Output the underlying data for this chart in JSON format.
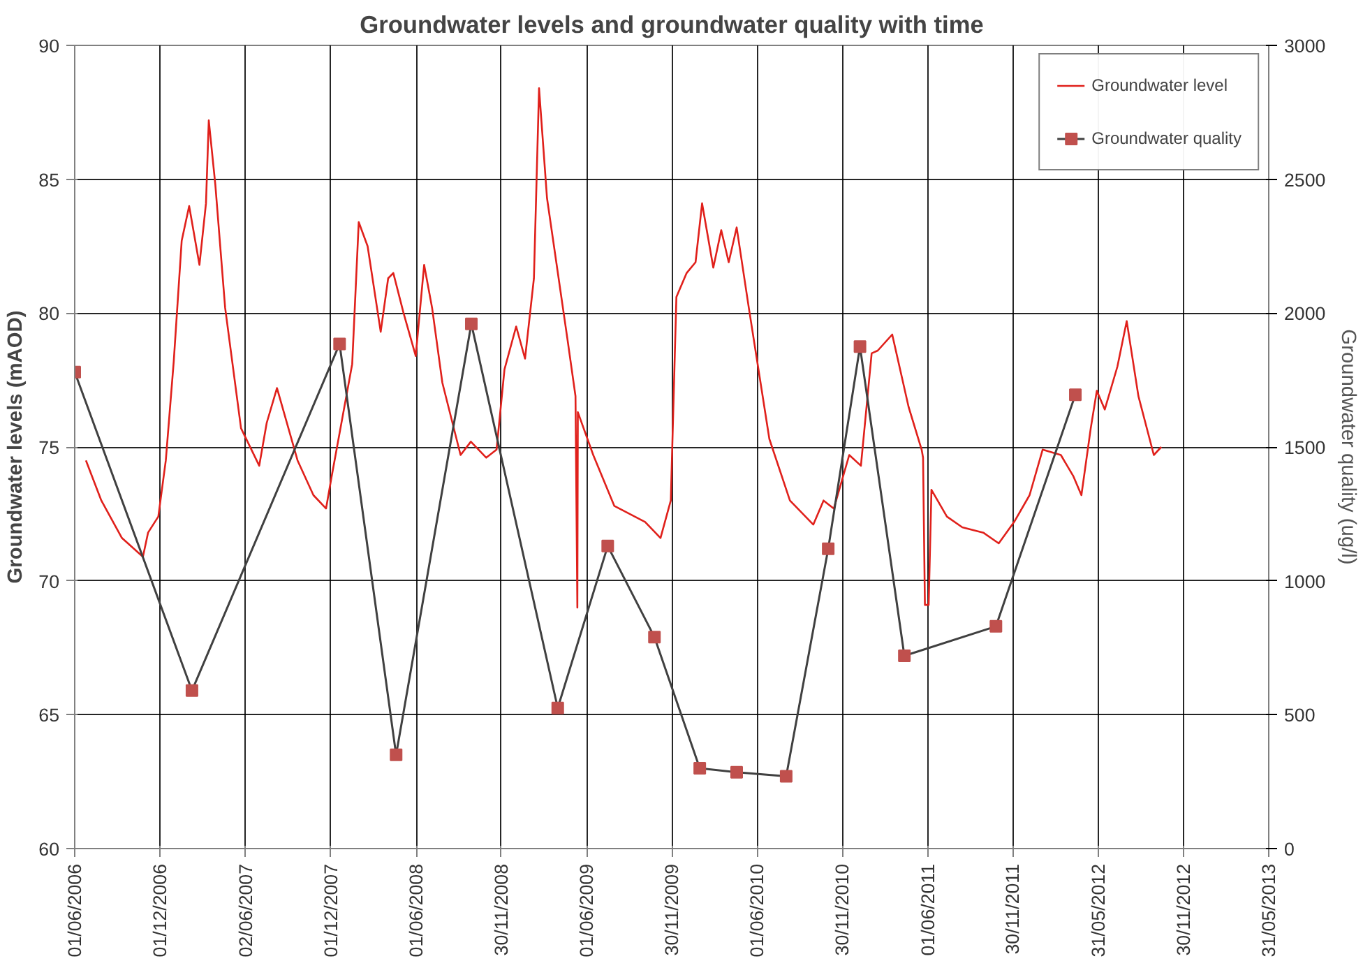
{
  "chart_data": {
    "type": "line",
    "title": "Groundwater levels and groundwater quality with time",
    "ylabel": "Groundwater levels (mAOD)",
    "y2label": "Groundwater quality (ug/l)",
    "xlim": [
      "2006-06-01",
      "2013-05-31"
    ],
    "xticks": [
      {
        "value": "2006-06-01",
        "label": "01/06/2006"
      },
      {
        "value": "2006-12-01",
        "label": "01/12/2006"
      },
      {
        "value": "2007-06-02",
        "label": "02/06/2007"
      },
      {
        "value": "2007-12-01",
        "label": "01/12/2007"
      },
      {
        "value": "2008-06-01",
        "label": "01/06/2008"
      },
      {
        "value": "2008-11-30",
        "label": "30/11/2008"
      },
      {
        "value": "2009-06-01",
        "label": "01/06/2009"
      },
      {
        "value": "2009-11-30",
        "label": "30/11/2009"
      },
      {
        "value": "2010-06-01",
        "label": "01/06/2010"
      },
      {
        "value": "2010-11-30",
        "label": "30/11/2010"
      },
      {
        "value": "2011-06-01",
        "label": "01/06/2011"
      },
      {
        "value": "2011-11-30",
        "label": "30/11/2011"
      },
      {
        "value": "2012-05-31",
        "label": "31/05/2012"
      },
      {
        "value": "2012-11-30",
        "label": "30/11/2012"
      },
      {
        "value": "2013-05-31",
        "label": "31/05/2013"
      }
    ],
    "ylim": [
      60,
      90
    ],
    "yticks": [
      60,
      65,
      70,
      75,
      80,
      85,
      90
    ],
    "y2lim": [
      0,
      3000
    ],
    "y2ticks": [
      0,
      500,
      1000,
      1500,
      2000,
      2500,
      3000
    ],
    "grid": true,
    "legend": "top right",
    "series": [
      {
        "name": "Groundwater level",
        "color": "#e0201b",
        "marker": "none",
        "x": [
          "2006-06-25",
          "2006-07-28",
          "2006-09-10",
          "2006-10-25",
          "2006-11-05",
          "2006-11-27",
          "2006-12-13",
          "2006-12-30",
          "2007-01-16",
          "2007-02-01",
          "2007-02-23",
          "2007-03-09",
          "2007-03-15",
          "2007-03-29",
          "2007-04-19",
          "2007-05-23",
          "2007-07-01",
          "2007-07-17",
          "2007-08-08",
          "2007-09-21",
          "2007-10-25",
          "2007-11-21",
          "2007-12-03",
          "2008-01-16",
          "2008-01-30",
          "2008-02-18",
          "2008-03-17",
          "2008-04-02",
          "2008-04-13",
          "2008-05-05",
          "2008-05-31",
          "2008-06-18",
          "2008-07-05",
          "2008-07-27",
          "2008-09-04",
          "2008-09-26",
          "2008-10-29",
          "2008-11-20",
          "2008-12-07",
          "2009-01-01",
          "2009-01-20",
          "2009-02-08",
          "2009-02-19",
          "2009-03-08",
          "2009-04-21",
          "2009-05-08",
          "2009-05-12",
          "2009-05-13",
          "2009-06-15",
          "2009-07-30",
          "2009-10-04",
          "2009-11-06",
          "2009-11-28",
          "2009-12-10",
          "2010-01-01",
          "2010-01-20",
          "2010-02-03",
          "2010-02-27",
          "2010-03-16",
          "2010-04-01",
          "2010-04-18",
          "2010-05-14",
          "2010-06-27",
          "2010-08-10",
          "2010-09-29",
          "2010-10-21",
          "2010-11-12",
          "2010-12-15",
          "2011-01-09",
          "2011-02-01",
          "2011-02-14",
          "2011-03-17",
          "2011-04-21",
          "2011-05-19",
          "2011-05-22",
          "2011-05-26",
          "2011-06-03",
          "2011-06-09",
          "2011-07-12",
          "2011-08-14",
          "2011-09-28",
          "2011-10-31",
          "2011-12-03",
          "2012-01-05",
          "2012-02-02",
          "2012-03-12",
          "2012-04-08",
          "2012-04-25",
          "2012-05-15",
          "2012-05-28",
          "2012-06-14",
          "2012-07-11",
          "2012-07-31",
          "2012-08-25",
          "2012-09-27",
          "2012-10-13"
        ],
        "values": [
          74.5,
          73.0,
          71.6,
          70.9,
          71.8,
          72.4,
          74.5,
          78.2,
          82.7,
          84.0,
          81.8,
          84.1,
          87.2,
          84.8,
          80.2,
          75.7,
          74.3,
          75.9,
          77.2,
          74.5,
          73.2,
          72.7,
          73.9,
          78.1,
          83.4,
          82.5,
          79.3,
          81.3,
          81.5,
          80.0,
          78.4,
          81.8,
          80.2,
          77.4,
          74.7,
          75.2,
          74.6,
          74.9,
          77.9,
          79.5,
          78.3,
          81.3,
          88.4,
          84.3,
          79.0,
          76.9,
          69.0,
          76.3,
          74.7,
          72.8,
          72.2,
          71.6,
          73.0,
          80.6,
          81.5,
          81.9,
          84.1,
          81.7,
          83.1,
          81.9,
          83.2,
          80.2,
          75.3,
          73.0,
          72.1,
          73.0,
          72.7,
          74.7,
          74.3,
          78.5,
          78.6,
          79.2,
          76.5,
          74.9,
          74.6,
          69.1,
          69.1,
          73.4,
          72.4,
          72.0,
          71.8,
          71.4,
          72.2,
          73.2,
          74.9,
          74.7,
          73.9,
          73.2,
          75.7,
          77.1,
          76.4,
          78.0,
          79.7,
          76.9,
          74.7,
          75.0
        ]
      },
      {
        "name": "Groundwater quality",
        "axis": "y2",
        "color": "#c0504d",
        "marker": "square",
        "x": [
          "2006-06-01",
          "2007-02-07",
          "2007-12-20",
          "2008-04-19",
          "2008-09-27",
          "2009-03-31",
          "2009-07-16",
          "2009-10-24",
          "2010-01-29",
          "2010-04-18",
          "2010-08-02",
          "2010-10-31",
          "2011-01-07",
          "2011-04-12",
          "2011-10-25",
          "2012-04-12"
        ],
        "values": [
          1780,
          590,
          1885,
          350,
          1960,
          525,
          1130,
          790,
          300,
          285,
          270,
          1120,
          1875,
          720,
          830,
          1695
        ]
      }
    ]
  }
}
